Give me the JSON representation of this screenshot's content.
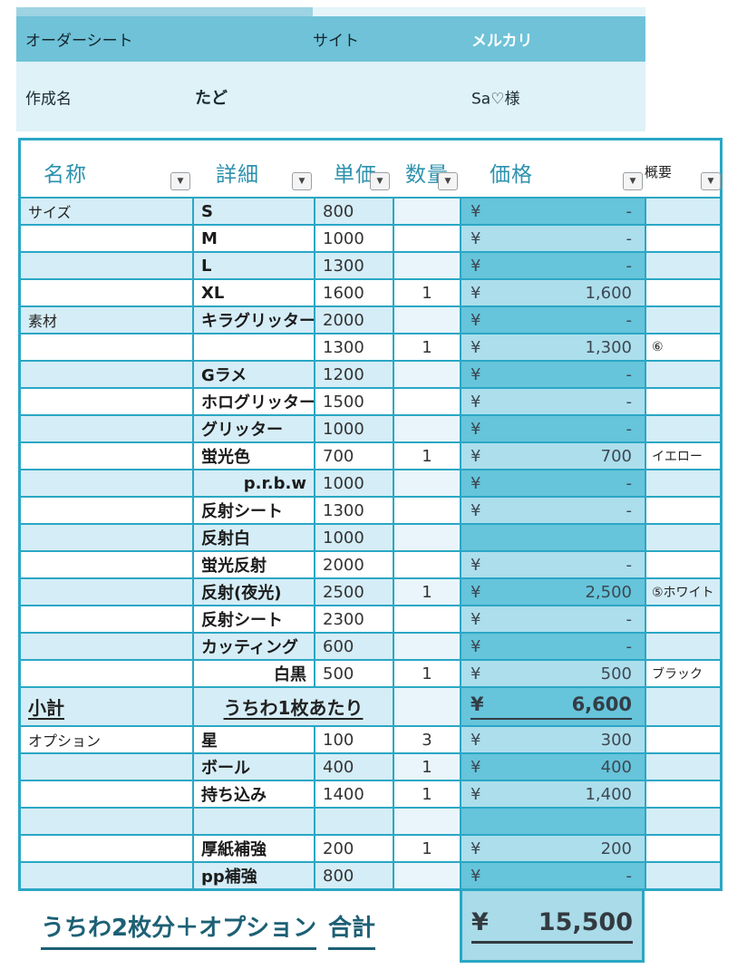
{
  "colors": {
    "accent_teal_border": "#2aa7c5",
    "title_bar": "#6fc2d8",
    "light_row": "#d5edf6",
    "price_dark_cell": "#66c4db",
    "price_light_cell": "#addeec",
    "subheader_bg": "#def2f8",
    "total_block_bg": "#a9dbe9",
    "header_text_teal": "#2d92ad",
    "footer_text_teal": "#1d6075"
  },
  "top_bar": {
    "title": "オーダーシート",
    "site_label": "サイト",
    "site_value": "メルカリ"
  },
  "creator_row": {
    "label": "作成名",
    "name": "たど",
    "customer": "Sa♡様"
  },
  "table": {
    "columns": [
      "名称",
      "詳細",
      "単価",
      "数量",
      "価格",
      "概要"
    ],
    "filter_icon": "▼",
    "rows": [
      {
        "type": "item",
        "name": "サイズ",
        "detail": "S",
        "unit": "800",
        "qty": "",
        "yen": "¥",
        "price": "-",
        "note": "",
        "shade": "light",
        "price_style": "dark",
        "detail_align": "left"
      },
      {
        "type": "item",
        "name": "",
        "detail": "M",
        "unit": "1000",
        "qty": "",
        "yen": "¥",
        "price": "-",
        "note": "",
        "shade": "white",
        "price_style": "light",
        "detail_align": "left"
      },
      {
        "type": "item",
        "name": "",
        "detail": "L",
        "unit": "1300",
        "qty": "",
        "yen": "¥",
        "price": "-",
        "note": "",
        "shade": "light",
        "price_style": "dark",
        "detail_align": "left"
      },
      {
        "type": "item",
        "name": "",
        "detail": "XL",
        "unit": "1600",
        "qty": "1",
        "yen": "¥",
        "price": "1,600",
        "note": "",
        "shade": "white",
        "price_style": "light",
        "detail_align": "left"
      },
      {
        "type": "item",
        "name": "素材",
        "detail": "キラグリッター",
        "unit": "2000",
        "qty": "",
        "yen": "¥",
        "price": "-",
        "note": "",
        "shade": "light",
        "price_style": "dark",
        "detail_align": "left"
      },
      {
        "type": "item",
        "name": "",
        "detail": "",
        "unit": "1300",
        "qty": "1",
        "yen": "¥",
        "price": "1,300",
        "note": "⑥",
        "shade": "white",
        "price_style": "light",
        "detail_align": "left"
      },
      {
        "type": "item",
        "name": "",
        "detail": "Gラメ",
        "unit": "1200",
        "qty": "",
        "yen": "¥",
        "price": "-",
        "note": "",
        "shade": "light",
        "price_style": "dark",
        "detail_align": "left"
      },
      {
        "type": "item",
        "name": "",
        "detail": "ホログリッター",
        "unit": "1500",
        "qty": "",
        "yen": "¥",
        "price": "-",
        "note": "",
        "shade": "white",
        "price_style": "light",
        "detail_align": "left"
      },
      {
        "type": "item",
        "name": "",
        "detail": "グリッター",
        "unit": "1000",
        "qty": "",
        "yen": "¥",
        "price": "-",
        "note": "",
        "shade": "light",
        "price_style": "dark",
        "detail_align": "left"
      },
      {
        "type": "item",
        "name": "",
        "detail": "蛍光色",
        "unit": "700",
        "qty": "1",
        "yen": "¥",
        "price": "700",
        "note": "イエロー",
        "shade": "white",
        "price_style": "light",
        "detail_align": "left"
      },
      {
        "type": "item",
        "name": "",
        "detail": "p.r.b.w",
        "unit": "1000",
        "qty": "",
        "yen": "¥",
        "price": "-",
        "note": "",
        "shade": "light",
        "price_style": "dark",
        "detail_align": "right"
      },
      {
        "type": "item",
        "name": "",
        "detail": "反射シート",
        "unit": "1300",
        "qty": "",
        "yen": "¥",
        "price": "-",
        "note": "",
        "shade": "white",
        "price_style": "light",
        "detail_align": "left"
      },
      {
        "type": "item",
        "name": "",
        "detail": "反射白",
        "unit": "1000",
        "qty": "",
        "yen": "",
        "price": "",
        "note": "",
        "shade": "light",
        "price_style": "dark",
        "detail_align": "left"
      },
      {
        "type": "item",
        "name": "",
        "detail": "蛍光反射",
        "unit": "2000",
        "qty": "",
        "yen": "¥",
        "price": "-",
        "note": "",
        "shade": "white",
        "price_style": "light",
        "detail_align": "left"
      },
      {
        "type": "item",
        "name": "",
        "detail": "反射(夜光)",
        "unit": "2500",
        "qty": "1",
        "yen": "¥",
        "price": "2,500",
        "note": "⑤ホワイト",
        "shade": "light",
        "price_style": "dark",
        "detail_align": "left"
      },
      {
        "type": "item",
        "name": "",
        "detail": "反射シート",
        "unit": "2300",
        "qty": "",
        "yen": "¥",
        "price": "-",
        "note": "",
        "shade": "white",
        "price_style": "light",
        "detail_align": "left"
      },
      {
        "type": "item",
        "name": "",
        "detail": "カッティング",
        "unit": "600",
        "qty": "",
        "yen": "¥",
        "price": "-",
        "note": "",
        "shade": "light",
        "price_style": "dark",
        "detail_align": "left"
      },
      {
        "type": "item",
        "name": "",
        "detail": "白黒",
        "unit": "500",
        "qty": "1",
        "yen": "¥",
        "price": "500",
        "note": "ブラック",
        "shade": "white",
        "price_style": "light",
        "detail_align": "right"
      },
      {
        "type": "subtotal",
        "name": "小計",
        "detail": "うちわ1枚あたり",
        "unit": "",
        "qty": "",
        "yen": "¥",
        "price": "6,600",
        "note": "",
        "shade": "light",
        "price_style": "dark",
        "detail_align": "center"
      },
      {
        "type": "item",
        "name": "オプション",
        "detail": "星",
        "unit": "100",
        "qty": "3",
        "yen": "¥",
        "price": "300",
        "note": "",
        "shade": "white",
        "price_style": "light",
        "detail_align": "left"
      },
      {
        "type": "item",
        "name": "",
        "detail": "ボール",
        "unit": "400",
        "qty": "1",
        "yen": "¥",
        "price": "400",
        "note": "",
        "shade": "light",
        "price_style": "dark",
        "detail_align": "left"
      },
      {
        "type": "item",
        "name": "",
        "detail": "持ち込み",
        "unit": "1400",
        "qty": "1",
        "yen": "¥",
        "price": "1,400",
        "note": "",
        "shade": "white",
        "price_style": "light",
        "detail_align": "left"
      },
      {
        "type": "item",
        "name": "",
        "detail": "",
        "unit": "",
        "qty": "",
        "yen": "",
        "price": "",
        "note": "",
        "shade": "light",
        "price_style": "dark",
        "detail_align": "left"
      },
      {
        "type": "item",
        "name": "",
        "detail": "厚紙補強",
        "unit": "200",
        "qty": "1",
        "yen": "¥",
        "price": "200",
        "note": "",
        "shade": "white",
        "price_style": "light",
        "detail_align": "left"
      },
      {
        "type": "item",
        "name": "",
        "detail": "pp補強",
        "unit": "800",
        "qty": "",
        "yen": "¥",
        "price": "-",
        "note": "",
        "shade": "light",
        "price_style": "dark",
        "detail_align": "left"
      }
    ]
  },
  "footer": {
    "summary_label": "うちわ2枚分＋オプション",
    "total_label": "合計",
    "yen": "¥",
    "total_value": "15,500"
  }
}
